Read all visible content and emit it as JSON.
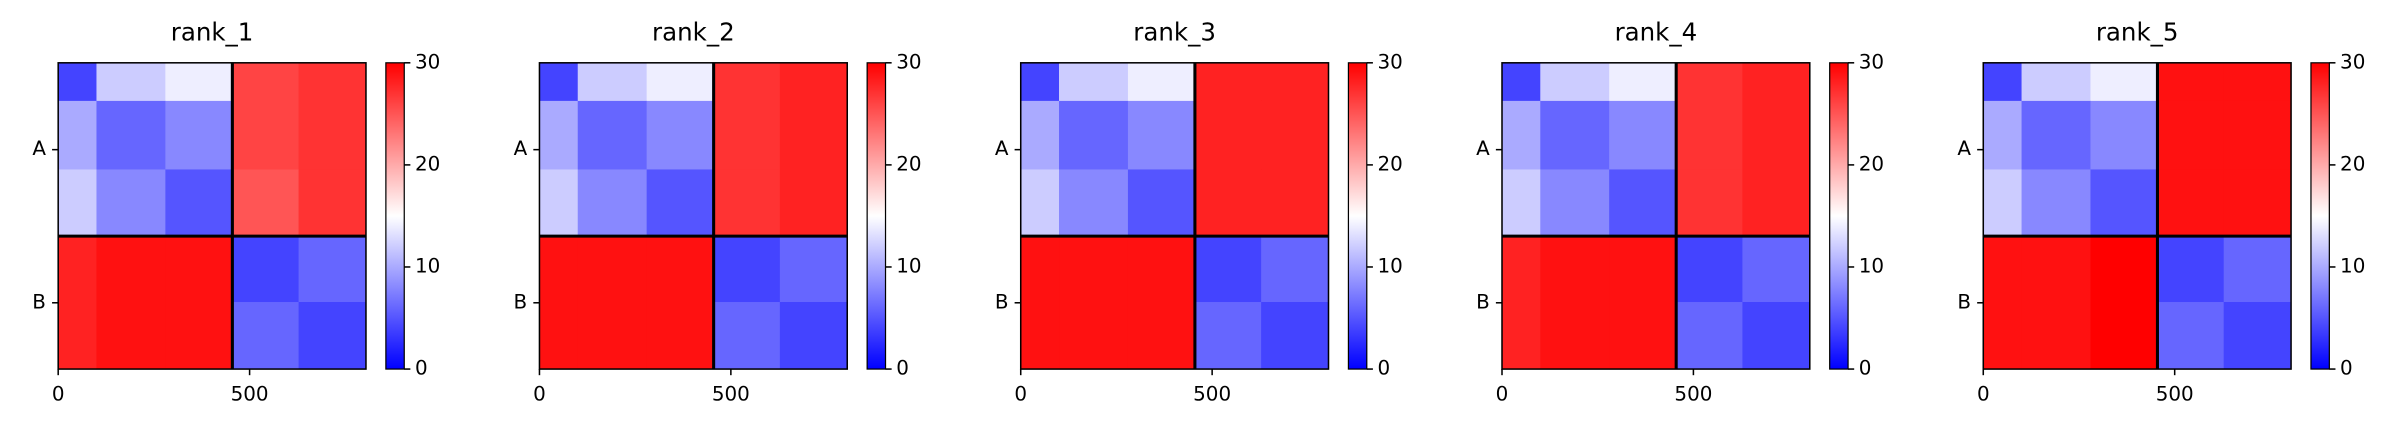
{
  "chart_data": [
    {
      "type": "heatmap",
      "title": "rank_1",
      "colormap": "bwr",
      "x_edges": [
        0,
        100,
        280,
        455,
        628,
        804
      ],
      "y_edges": [
        0,
        100,
        280,
        455,
        628,
        804
      ],
      "matrix": [
        [
          4,
          12,
          14,
          26,
          27
        ],
        [
          10,
          6,
          8,
          26,
          27
        ],
        [
          12,
          8,
          5,
          25,
          27
        ],
        [
          28,
          29,
          29,
          4,
          6
        ],
        [
          28,
          29,
          29,
          6,
          4
        ]
      ],
      "xlim": [
        0,
        804
      ],
      "xticks": [
        0,
        500
      ],
      "ylim": [
        0,
        804
      ],
      "yticks": [
        {
          "value": 228,
          "label": "A"
        },
        {
          "value": 630,
          "label": "B"
        }
      ],
      "boundaries": [
        455
      ],
      "clim": [
        0,
        30
      ],
      "cticks": [
        0,
        10,
        20,
        30
      ]
    },
    {
      "type": "heatmap",
      "title": "rank_2",
      "colormap": "bwr",
      "x_edges": [
        0,
        100,
        280,
        455,
        628,
        804
      ],
      "y_edges": [
        0,
        100,
        280,
        455,
        628,
        804
      ],
      "matrix": [
        [
          4,
          12,
          14,
          27,
          28
        ],
        [
          10,
          6,
          8,
          27,
          28
        ],
        [
          12,
          8,
          5,
          27,
          28
        ],
        [
          29,
          29,
          29,
          4,
          6
        ],
        [
          29,
          29,
          29,
          6,
          4
        ]
      ],
      "xlim": [
        0,
        804
      ],
      "xticks": [
        0,
        500
      ],
      "ylim": [
        0,
        804
      ],
      "yticks": [
        {
          "value": 228,
          "label": "A"
        },
        {
          "value": 630,
          "label": "B"
        }
      ],
      "boundaries": [
        455
      ],
      "clim": [
        0,
        30
      ],
      "cticks": [
        0,
        10,
        20,
        30
      ]
    },
    {
      "type": "heatmap",
      "title": "rank_3",
      "colormap": "bwr",
      "x_edges": [
        0,
        100,
        280,
        455,
        628,
        804
      ],
      "y_edges": [
        0,
        100,
        280,
        455,
        628,
        804
      ],
      "matrix": [
        [
          4,
          12,
          14,
          28,
          28
        ],
        [
          10,
          6,
          8,
          28,
          28
        ],
        [
          12,
          8,
          5,
          28,
          28
        ],
        [
          29,
          29,
          29,
          4,
          6
        ],
        [
          29,
          29,
          29,
          6,
          4
        ]
      ],
      "xlim": [
        0,
        804
      ],
      "xticks": [
        0,
        500
      ],
      "ylim": [
        0,
        804
      ],
      "yticks": [
        {
          "value": 228,
          "label": "A"
        },
        {
          "value": 630,
          "label": "B"
        }
      ],
      "boundaries": [
        455
      ],
      "clim": [
        0,
        30
      ],
      "cticks": [
        0,
        10,
        20,
        30
      ]
    },
    {
      "type": "heatmap",
      "title": "rank_4",
      "colormap": "bwr",
      "x_edges": [
        0,
        100,
        280,
        455,
        628,
        804
      ],
      "y_edges": [
        0,
        100,
        280,
        455,
        628,
        804
      ],
      "matrix": [
        [
          4,
          12,
          14,
          27,
          28
        ],
        [
          10,
          6,
          8,
          27,
          28
        ],
        [
          12,
          8,
          5,
          27,
          28
        ],
        [
          28,
          29,
          29,
          4,
          6
        ],
        [
          28,
          29,
          29,
          6,
          4
        ]
      ],
      "xlim": [
        0,
        804
      ],
      "xticks": [
        0,
        500
      ],
      "ylim": [
        0,
        804
      ],
      "yticks": [
        {
          "value": 228,
          "label": "A"
        },
        {
          "value": 630,
          "label": "B"
        }
      ],
      "boundaries": [
        455
      ],
      "clim": [
        0,
        30
      ],
      "cticks": [
        0,
        10,
        20,
        30
      ]
    },
    {
      "type": "heatmap",
      "title": "rank_5",
      "colormap": "bwr",
      "x_edges": [
        0,
        100,
        280,
        455,
        628,
        804
      ],
      "y_edges": [
        0,
        100,
        280,
        455,
        628,
        804
      ],
      "matrix": [
        [
          4,
          12,
          14,
          29,
          29
        ],
        [
          10,
          6,
          8,
          29,
          29
        ],
        [
          12,
          8,
          5,
          29,
          29
        ],
        [
          29,
          29,
          30,
          4,
          6
        ],
        [
          29,
          29,
          30,
          6,
          4
        ]
      ],
      "xlim": [
        0,
        804
      ],
      "xticks": [
        0,
        500
      ],
      "ylim": [
        0,
        804
      ],
      "yticks": [
        {
          "value": 228,
          "label": "A"
        },
        {
          "value": 630,
          "label": "B"
        }
      ],
      "boundaries": [
        455
      ],
      "clim": [
        0,
        30
      ],
      "cticks": [
        0,
        10,
        20,
        30
      ]
    }
  ]
}
